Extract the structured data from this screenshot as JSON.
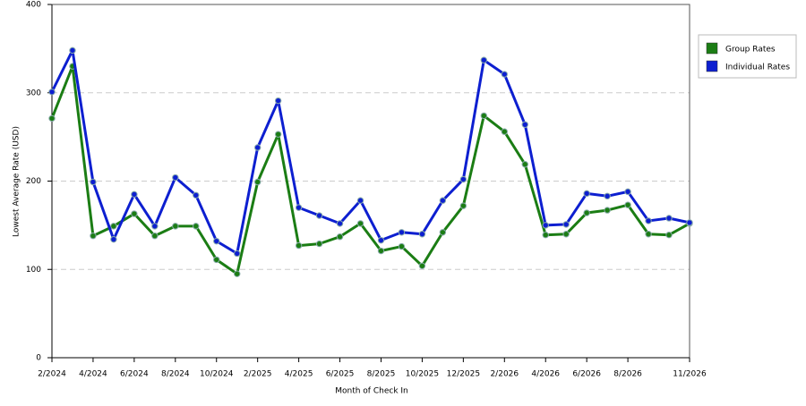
{
  "chart_data": {
    "type": "line",
    "x_label": "Month of Check In",
    "y_label": "Lowest Average Rate (USD)",
    "categories": [
      "2/2024",
      null,
      "4/2024",
      null,
      "6/2024",
      null,
      "8/2024",
      null,
      "10/2024",
      null,
      "2/2025",
      null,
      "4/2025",
      null,
      "6/2025",
      null,
      "8/2025",
      null,
      "10/2025",
      null,
      "12/2025",
      null,
      "2/2026",
      null,
      "4/2026",
      null,
      "6/2026",
      null,
      "8/2026",
      null,
      null,
      "11/2026"
    ],
    "series": [
      {
        "name": "Group Rates",
        "color": "#1b7d14",
        "values": [
          271,
          330,
          138,
          149,
          163,
          138,
          149,
          149,
          111,
          95,
          199,
          253,
          127,
          129,
          137,
          152,
          121,
          126,
          104,
          142,
          172,
          274,
          256,
          219,
          139,
          140,
          164,
          167,
          173,
          140,
          139,
          152
        ]
      },
      {
        "name": "Individual Rates",
        "color": "#0d1fd0",
        "values": [
          301,
          348,
          199,
          134,
          185,
          149,
          204,
          184,
          132,
          118,
          238,
          291,
          170,
          161,
          152,
          178,
          133,
          142,
          140,
          178,
          202,
          337,
          321,
          264,
          150,
          151,
          186,
          183,
          188,
          155,
          158,
          153
        ]
      }
    ],
    "ylim": [
      0,
      400
    ],
    "yticks": [
      0,
      100,
      200,
      300,
      400
    ],
    "grid": true,
    "legend": "right"
  }
}
